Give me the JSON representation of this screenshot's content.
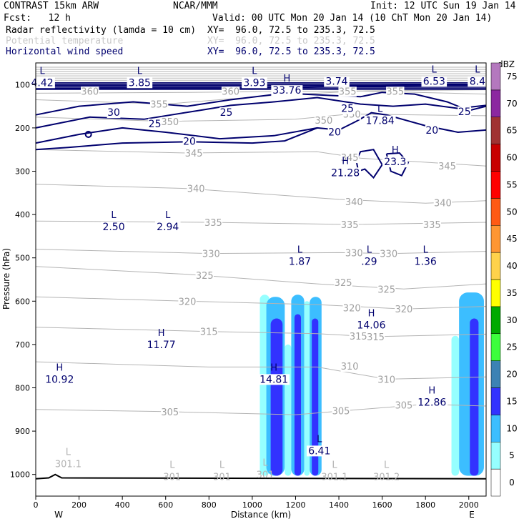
{
  "header": {
    "model": "CONTRAST 15km ARW",
    "center": "NCAR/MMM",
    "init": "Init: 12 UTC Sun 19 Jan 14",
    "fcst": "Fcst:   12 h",
    "valid": "Valid: 00 UTC Mon 20 Jan 14 (10 ChT Mon 20 Jan 14)",
    "fields": [
      {
        "name": "Radar reflectivity (lamda = 10 cm)",
        "xy": "XY=  96.0, 72.5 to 235.3, 72.5",
        "color": "#000000"
      },
      {
        "name": "Potential temperature",
        "xy": "XY=  96.0, 72.5 to 235.3, 72.5",
        "color": "#b4b4b4"
      },
      {
        "name": "Horizontal wind speed",
        "xy": "XY=  96.0, 72.5 to 235.3, 72.5",
        "color": "#00006e"
      }
    ]
  },
  "chart_data": {
    "type": "cross-section",
    "title": "CONTRAST 15km ARW",
    "xlabel": "Distance (km)",
    "ylabel": "Pressure (hPa)",
    "xlim": [
      0,
      2080
    ],
    "ylim": [
      1050,
      50
    ],
    "x_ticks": [
      0,
      200,
      400,
      600,
      800,
      1000,
      1200,
      1400,
      1600,
      1800,
      2000
    ],
    "y_ticks": [
      100,
      200,
      300,
      400,
      500,
      600,
      700,
      800,
      900,
      1000
    ],
    "end_labels": {
      "left": "W",
      "right": "E"
    },
    "colorbar": {
      "unit": "dBZ",
      "levels": [
        0,
        5,
        10,
        15,
        20,
        25,
        30,
        35,
        40,
        45,
        50,
        55,
        60,
        65,
        70,
        75
      ],
      "colors": [
        "#ffffff",
        "#96ffff",
        "#3cbeff",
        "#3232ff",
        "#3c82b4",
        "#3cff3c",
        "#00aa00",
        "#ffff00",
        "#ffd24b",
        "#ff9632",
        "#ff5a14",
        "#ff0000",
        "#c80000",
        "#a03232",
        "#8c28a0",
        "#b478be"
      ]
    },
    "theta_contours": [
      {
        "label": "360",
        "x": 250,
        "p": 115
      },
      {
        "label": "360",
        "x": 900,
        "p": 115
      },
      {
        "label": "355",
        "x": 570,
        "p": 145
      },
      {
        "label": "355",
        "x": 1440,
        "p": 115
      },
      {
        "label": "355",
        "x": 1660,
        "p": 115
      },
      {
        "label": "350",
        "x": 620,
        "p": 185
      },
      {
        "label": "350",
        "x": 1330,
        "p": 182
      },
      {
        "label": "350",
        "x": 1460,
        "p": 168
      },
      {
        "label": "345",
        "x": 730,
        "p": 258
      },
      {
        "label": "345",
        "x": 1450,
        "p": 268
      },
      {
        "label": "345",
        "x": 1900,
        "p": 288
      },
      {
        "label": "340",
        "x": 740,
        "p": 340
      },
      {
        "label": "340",
        "x": 1470,
        "p": 370
      },
      {
        "label": "340",
        "x": 1880,
        "p": 373
      },
      {
        "label": "335",
        "x": 820,
        "p": 418
      },
      {
        "label": "335",
        "x": 1450,
        "p": 423
      },
      {
        "label": "335",
        "x": 1830,
        "p": 423
      },
      {
        "label": "330",
        "x": 810,
        "p": 490
      },
      {
        "label": "330",
        "x": 1470,
        "p": 488
      },
      {
        "label": "330",
        "x": 1630,
        "p": 490
      },
      {
        "label": "325",
        "x": 780,
        "p": 540
      },
      {
        "label": "325",
        "x": 1420,
        "p": 557
      },
      {
        "label": "325",
        "x": 1620,
        "p": 572
      },
      {
        "label": "320",
        "x": 700,
        "p": 600
      },
      {
        "label": "320",
        "x": 1460,
        "p": 615
      },
      {
        "label": "320",
        "x": 1700,
        "p": 618
      },
      {
        "label": "315",
        "x": 800,
        "p": 670
      },
      {
        "label": "315",
        "x": 1490,
        "p": 680
      },
      {
        "label": "315",
        "x": 1570,
        "p": 682
      },
      {
        "label": "310",
        "x": 1450,
        "p": 750
      },
      {
        "label": "310",
        "x": 1620,
        "p": 780
      },
      {
        "label": "305",
        "x": 620,
        "p": 855
      },
      {
        "label": "305",
        "x": 1410,
        "p": 853
      },
      {
        "label": "305",
        "x": 1700,
        "p": 840
      }
    ],
    "theta_extrema": [
      {
        "kind": "L",
        "value": "301.1",
        "x": 150,
        "p": 975
      },
      {
        "kind": "L",
        "value": "301",
        "x": 630,
        "p": 1005
      },
      {
        "kind": "L",
        "value": "301",
        "x": 860,
        "p": 1005
      },
      {
        "kind": "L",
        "value": "301",
        "x": 1060,
        "p": 1000
      },
      {
        "kind": "L",
        "value": "301.1",
        "x": 1380,
        "p": 1005
      },
      {
        "kind": "L",
        "value": "301.2",
        "x": 1620,
        "p": 1005
      }
    ],
    "wind_contours": [
      {
        "label": "30",
        "x": 360,
        "p": 164
      },
      {
        "label": "25",
        "x": 550,
        "p": 190
      },
      {
        "label": "25",
        "x": 880,
        "p": 164
      },
      {
        "label": "25",
        "x": 1440,
        "p": 155
      },
      {
        "label": "25",
        "x": 1980,
        "p": 162
      },
      {
        "label": "20",
        "x": 710,
        "p": 231
      },
      {
        "label": "20",
        "x": 1380,
        "p": 209
      },
      {
        "label": "20",
        "x": 1830,
        "p": 205
      }
    ],
    "wind_extrema": [
      {
        "kind": "L",
        "value": "4.42",
        "x": 30,
        "p": 95
      },
      {
        "kind": "L",
        "value": "3.85",
        "x": 480,
        "p": 95
      },
      {
        "kind": "L",
        "value": "3.93",
        "x": 1010,
        "p": 95
      },
      {
        "kind": "H",
        "value": "33.76",
        "x": 1160,
        "p": 113
      },
      {
        "kind": "",
        "value": "3.74",
        "x": 1390,
        "p": 92
      },
      {
        "kind": "L",
        "value": "6.53",
        "x": 1840,
        "p": 92
      },
      {
        "kind": "L",
        "value": "8.4",
        "x": 2040,
        "p": 92
      },
      {
        "kind": "L",
        "value": "17.84",
        "x": 1590,
        "p": 183
      },
      {
        "kind": "H",
        "value": "23.3",
        "x": 1660,
        "p": 278
      },
      {
        "kind": "H",
        "value": "21.28",
        "x": 1430,
        "p": 303
      },
      {
        "kind": "L",
        "value": "2.50",
        "x": 360,
        "p": 428
      },
      {
        "kind": "L",
        "value": "2.94",
        "x": 610,
        "p": 428
      },
      {
        "kind": "L",
        "value": "1.87",
        "x": 1220,
        "p": 508
      },
      {
        "kind": "L",
        "value": ".29",
        "x": 1540,
        "p": 508
      },
      {
        "kind": "L",
        "value": "1.36",
        "x": 1800,
        "p": 508
      },
      {
        "kind": "H",
        "value": "14.06",
        "x": 1550,
        "p": 655
      },
      {
        "kind": "H",
        "value": "11.77",
        "x": 580,
        "p": 700
      },
      {
        "kind": "H",
        "value": "10.92",
        "x": 110,
        "p": 780
      },
      {
        "kind": "H",
        "value": "14.81",
        "x": 1100,
        "p": 780
      },
      {
        "kind": "H",
        "value": "12.86",
        "x": 1830,
        "p": 833
      },
      {
        "kind": "L",
        "value": "6.41",
        "x": 1310,
        "p": 945
      }
    ],
    "reflectivity_cells": [
      {
        "x0": 1035,
        "x1": 1080,
        "p_top": 585,
        "dbz": 5
      },
      {
        "x0": 1065,
        "x1": 1150,
        "p_top": 590,
        "dbz": 10
      },
      {
        "x0": 1085,
        "x1": 1140,
        "p_top": 640,
        "dbz": 15
      },
      {
        "x0": 1150,
        "x1": 1180,
        "p_top": 700,
        "dbz": 5
      },
      {
        "x0": 1180,
        "x1": 1240,
        "p_top": 585,
        "dbz": 10
      },
      {
        "x0": 1195,
        "x1": 1225,
        "p_top": 630,
        "dbz": 15
      },
      {
        "x0": 1240,
        "x1": 1265,
        "p_top": 600,
        "dbz": 5
      },
      {
        "x0": 1265,
        "x1": 1320,
        "p_top": 590,
        "dbz": 10
      },
      {
        "x0": 1275,
        "x1": 1305,
        "p_top": 640,
        "dbz": 15
      },
      {
        "x0": 1920,
        "x1": 1955,
        "p_top": 680,
        "dbz": 5
      },
      {
        "x0": 1955,
        "x1": 2070,
        "p_top": 580,
        "dbz": 10
      },
      {
        "x0": 2005,
        "x1": 2045,
        "p_top": 640,
        "dbz": 15
      }
    ]
  }
}
